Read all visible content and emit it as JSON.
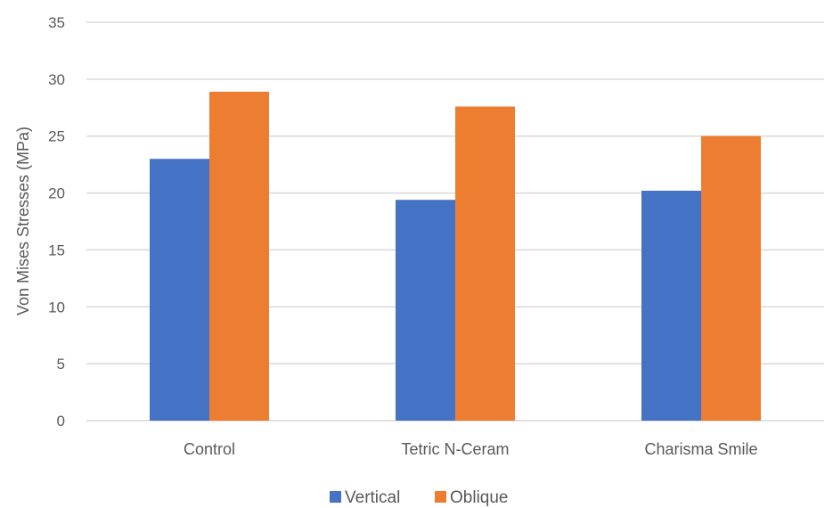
{
  "chart_data": {
    "type": "bar",
    "categories": [
      "Control",
      "Tetric N-Ceram",
      "Charisma Smile"
    ],
    "series": [
      {
        "name": "Vertical",
        "color": "#4472c4",
        "values": [
          23.0,
          19.4,
          20.2
        ]
      },
      {
        "name": "Oblique",
        "color": "#ed7d31",
        "values": [
          28.9,
          27.6,
          25.0
        ]
      }
    ],
    "title": "",
    "xlabel": "",
    "ylabel": "Von Mises Stresses (MPa)",
    "ylim": [
      0,
      35
    ],
    "yticks": [
      0,
      5,
      10,
      15,
      20,
      25,
      30,
      35
    ],
    "grid": true,
    "legend_position": "bottom"
  }
}
